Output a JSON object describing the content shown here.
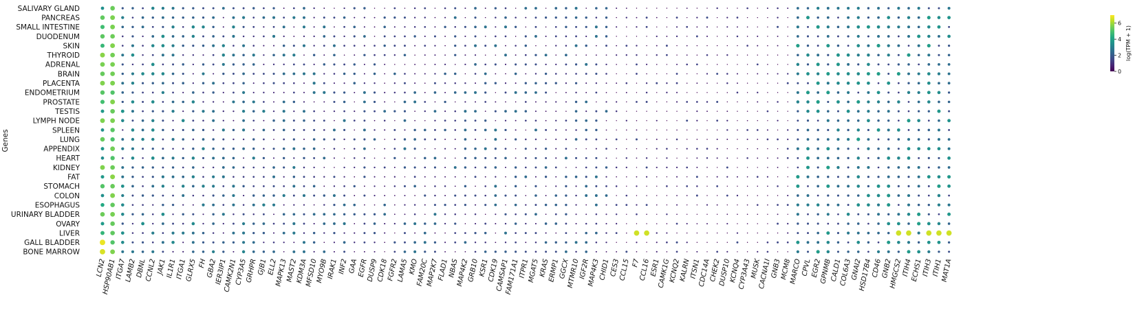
{
  "chart_data": {
    "type": "dotplot",
    "ylabel": "Genes",
    "colorbar": {
      "label": "log(TPM + 1)",
      "ticks": [
        0,
        2,
        4,
        6
      ],
      "range": [
        0,
        7
      ],
      "colormap": "viridis"
    },
    "rows": [
      "SALIVARY GLAND",
      "PANCREAS",
      "SMALL INTESTINE",
      "DUODENUM",
      "SKIN",
      "THYROID",
      "ADRENAL",
      "BRAIN",
      "PLACENTA",
      "ENDOMETRIUM",
      "PROSTATE",
      "TESTIS",
      "LYMPH NODE",
      "SPLEEN",
      "LUNG",
      "APPENDIX",
      "HEART",
      "KIDNEY",
      "FAT",
      "STOMACH",
      "COLON",
      "ESOPHAGUS",
      "URINARY BLADDER",
      "OVARY",
      "LIVER",
      "GALL BLADDER",
      "BONE MARROW"
    ],
    "columns": [
      "LCN2",
      "HSP90AB1",
      "ITGA7",
      "LAMB2",
      "DBNL",
      "CCNL2",
      "JAK1",
      "IL1R1",
      "ITGA1",
      "GLRX5",
      "FH",
      "GBA2",
      "IER3IP1",
      "CAMK2N1",
      "CYP3A5",
      "GRHPR",
      "GJB1",
      "ELL2",
      "MAPK13",
      "MAST2",
      "KDM3A",
      "MFSD10",
      "MYO9B",
      "IRAK1",
      "INF2",
      "GAA",
      "EGFR",
      "DUSP9",
      "CDK18",
      "FGFR2",
      "LAMA5",
      "KMO",
      "FAM20C",
      "MAP2K7",
      "FLAD1",
      "NBAS",
      "MAP4K2",
      "GRB10",
      "KSR1",
      "CDK19",
      "CAMSAP1",
      "FAM171A1",
      "ITPR1",
      "MGAT5",
      "KRAS",
      "ERMP1",
      "GGCX",
      "MTMR10",
      "IGF2R",
      "MAP4K3",
      "CHID1",
      "CES3",
      "CCL15",
      "F7",
      "CCL16",
      "ESR1",
      "CAMK1G",
      "KCNQ2",
      "KALRN",
      "ITSN1",
      "CDC14A",
      "CHEK2",
      "DUSP10",
      "KCNQ4",
      "CYP3A43",
      "MUSK",
      "CACNA1I",
      "GNB3",
      "MCM8",
      "MARCO",
      "CPVL",
      "EGR2",
      "GPNMB",
      "CALD1",
      "COL6A3",
      "GNAI2",
      "HSD17B4",
      "CD46",
      "GNB2",
      "HMGCS2",
      "ITIH4",
      "ECHS1",
      "ITIH3",
      "ITIH1",
      "MAT1A"
    ],
    "colors": {
      "viridis": [
        "#440154",
        "#482475",
        "#414487",
        "#355f8d",
        "#2a788e",
        "#21918c",
        "#22a884",
        "#44bf70",
        "#7ad151",
        "#bddf26",
        "#fde725"
      ]
    }
  }
}
